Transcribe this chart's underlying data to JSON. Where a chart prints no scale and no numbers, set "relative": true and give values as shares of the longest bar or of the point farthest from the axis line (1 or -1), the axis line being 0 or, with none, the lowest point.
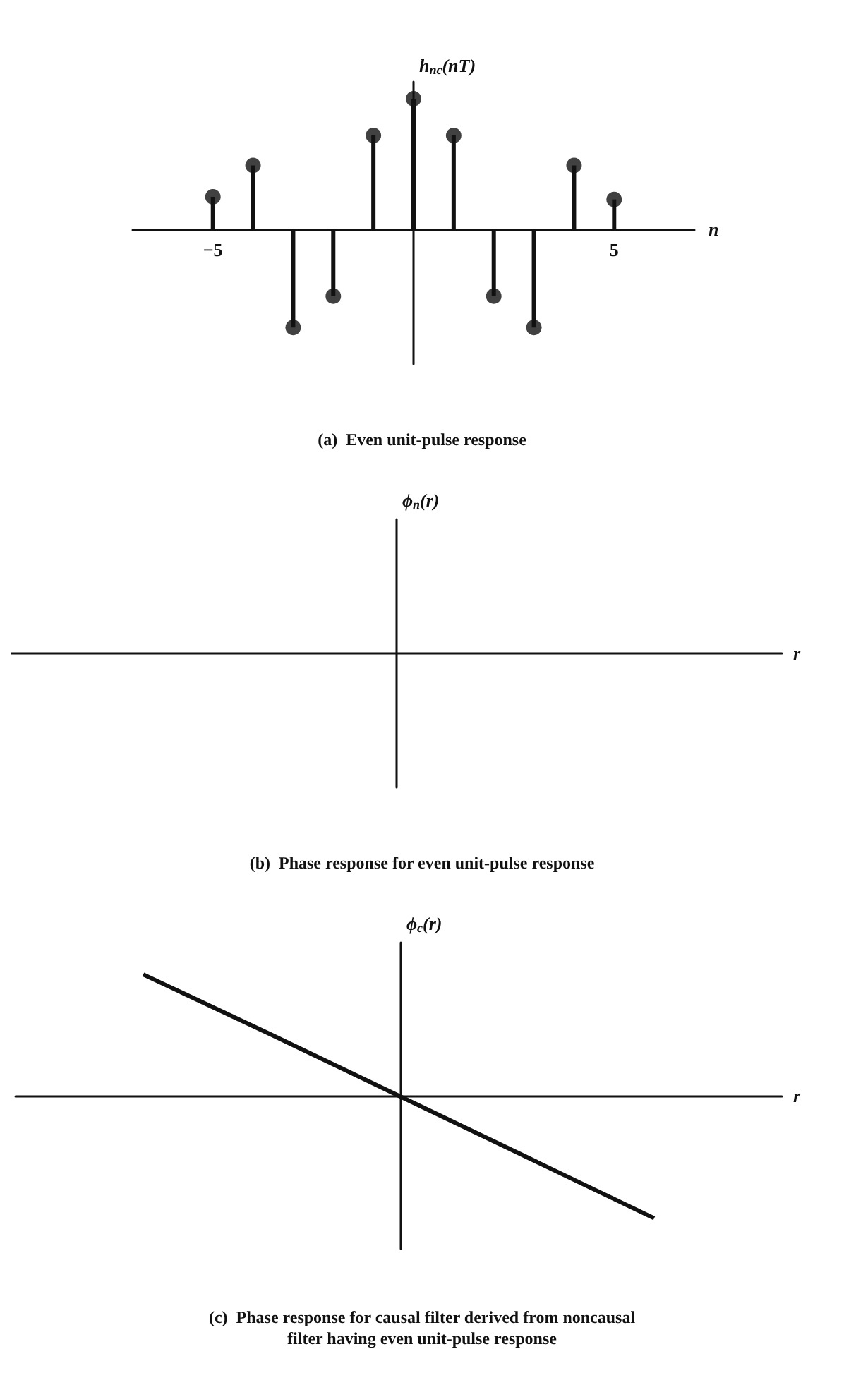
{
  "chart_data": [
    {
      "type": "lollipop",
      "title": "(a)  Even unit-pulse response",
      "xlabel": "n",
      "ylabel": "h$_{nc}$(nT)",
      "relative": true,
      "color": "#111111",
      "marker": "circle",
      "x": [
        -5,
        -4,
        -3,
        -2,
        -1,
        0,
        1,
        2,
        3,
        4,
        5
      ],
      "values": [
        0.25,
        0.49,
        -0.75,
        -0.51,
        0.72,
        1,
        0.72,
        -0.51,
        -0.75,
        0.49,
        0.23
      ],
      "xlim": [
        -7,
        7
      ],
      "xticks": [
        -5,
        5
      ]
    },
    {
      "type": "other",
      "title": "(b)  Phase response for even unit-pulse response",
      "xlabel": "r",
      "ylabel": "ϕ$_{n}$(r)"
    },
    {
      "type": "line",
      "title": "(c)  Phase response for causal filter derived from noncausal\nfilter having even unit-pulse response",
      "xlabel": "r",
      "ylabel": "ϕ$_{c}$(r)",
      "relative": true,
      "color": "#111111",
      "marker": "none",
      "categories": [
        null,
        null,
        null,
        null,
        null,
        null,
        null
      ],
      "values": [
        null,
        0.99,
        0.5,
        0,
        -0.5,
        -1,
        null
      ]
    }
  ]
}
